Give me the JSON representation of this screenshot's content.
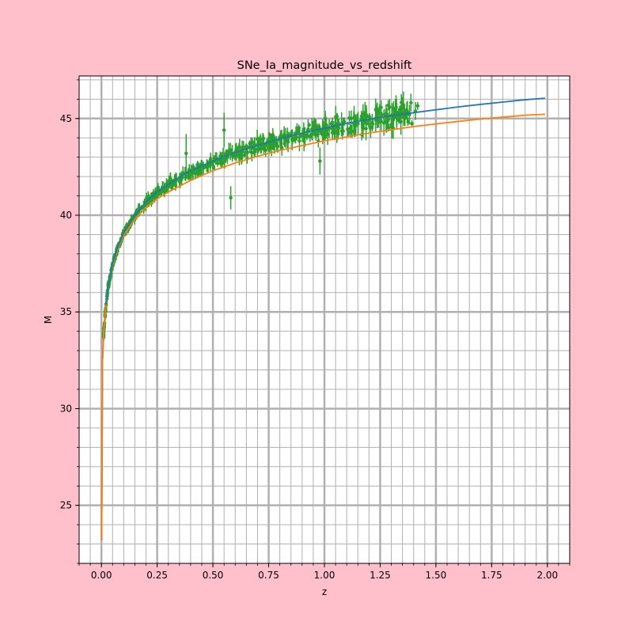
{
  "chart_data": {
    "type": "line",
    "title": "SNe_Ia_magnitude_vs_redshift",
    "xlabel": "z",
    "ylabel": "M",
    "xlim": [
      -0.1,
      2.1
    ],
    "ylim": [
      22,
      47.2
    ],
    "x_ticks": [
      0.0,
      0.25,
      0.5,
      0.75,
      1.0,
      1.25,
      1.5,
      1.75,
      2.0
    ],
    "x_tick_labels": [
      "0.00",
      "0.25",
      "0.50",
      "0.75",
      "1.00",
      "1.25",
      "1.50",
      "1.75",
      "2.00"
    ],
    "y_ticks": [
      25,
      30,
      35,
      40,
      45
    ],
    "y_tick_labels": [
      "25",
      "30",
      "35",
      "40",
      "45"
    ],
    "x_minor_step": 0.05,
    "y_minor_step": 1,
    "grid": true,
    "legend": "none",
    "series": [
      {
        "kind": "line",
        "color": "#1f77b4",
        "x": [
          0.001,
          0.005,
          0.01,
          0.02,
          0.03,
          0.05,
          0.075,
          0.1,
          0.15,
          0.2,
          0.25,
          0.3,
          0.4,
          0.5,
          0.6,
          0.7,
          0.8,
          0.9,
          1.0,
          1.1,
          1.2,
          1.3,
          1.4,
          1.5,
          1.6,
          1.7,
          1.8,
          1.9,
          1.99
        ],
        "y": [
          23.2,
          32.5,
          33.9,
          35.4,
          36.3,
          37.5,
          38.4,
          39.1,
          40.0,
          40.7,
          41.2,
          41.6,
          42.3,
          42.8,
          43.25,
          43.6,
          43.95,
          44.25,
          44.5,
          44.75,
          44.95,
          45.15,
          45.3,
          45.45,
          45.6,
          45.73,
          45.85,
          45.97,
          46.05
        ]
      },
      {
        "kind": "line",
        "color": "#ff7f0e",
        "x": [
          0.001,
          0.005,
          0.01,
          0.02,
          0.03,
          0.05,
          0.075,
          0.1,
          0.15,
          0.2,
          0.25,
          0.3,
          0.4,
          0.5,
          0.6,
          0.7,
          0.8,
          0.9,
          1.0,
          1.1,
          1.2,
          1.3,
          1.4,
          1.5,
          1.6,
          1.7,
          1.8,
          1.9,
          1.99
        ],
        "y": [
          23.2,
          32.5,
          33.9,
          35.4,
          36.3,
          37.4,
          38.3,
          38.95,
          39.8,
          40.4,
          40.85,
          41.2,
          41.8,
          42.3,
          42.7,
          43.05,
          43.35,
          43.6,
          43.85,
          44.05,
          44.25,
          44.42,
          44.58,
          44.72,
          44.85,
          44.97,
          45.07,
          45.17,
          45.22
        ]
      },
      {
        "kind": "errorbar",
        "color": "#2ca02c",
        "count": 580,
        "x_range": [
          0.01,
          1.42
        ],
        "trend_y": [
          33.9,
          45.0
        ],
        "error_range": [
          0.1,
          1.0
        ],
        "outliers": [
          {
            "x": 0.38,
            "y": 43.2,
            "err": 1.0
          },
          {
            "x": 0.55,
            "y": 44.4,
            "err": 0.9
          },
          {
            "x": 0.58,
            "y": 40.9,
            "err": 0.6
          },
          {
            "x": 0.98,
            "y": 42.8,
            "err": 0.7
          },
          {
            "x": 1.31,
            "y": 45.5,
            "err": 0.4
          },
          {
            "x": 1.24,
            "y": 45.3,
            "err": 0.3
          }
        ]
      }
    ]
  }
}
